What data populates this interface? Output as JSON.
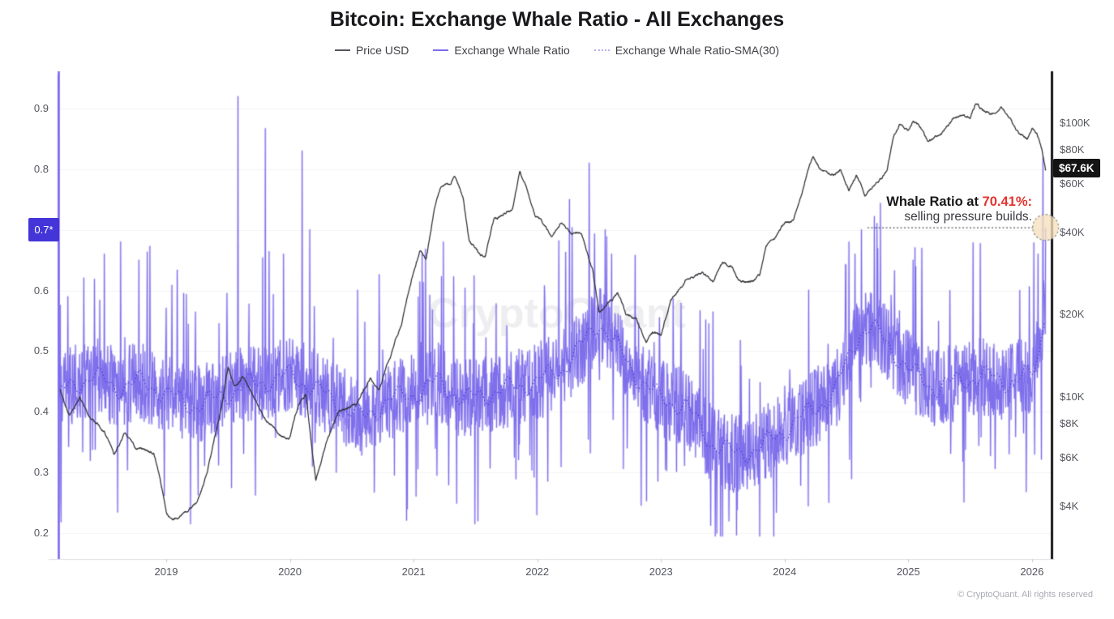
{
  "page": {
    "title": "Bitcoin: Exchange Whale Ratio - All Exchanges",
    "watermark": "CryptoQuant",
    "copyright": "© CryptoQuant. All rights reserved"
  },
  "legend": {
    "items": [
      {
        "label": "Price USD",
        "color": "#55555c",
        "style": "solid"
      },
      {
        "label": "Exchange Whale Ratio",
        "color": "#7b6bea",
        "style": "solid"
      },
      {
        "label": "Exchange Whale Ratio-SMA(30)",
        "color": "#b6adf3",
        "style": "dotted"
      }
    ]
  },
  "annotation": {
    "line1_prefix": "Whale Ratio at ",
    "line1_highlight": "70.41%:",
    "line2": "selling pressure builds.",
    "highlight_color": "#e3342f",
    "marker_fill": "#f6e0bd",
    "marker_border": "#8b8b8b"
  },
  "axis_chips": {
    "left": {
      "label": "0.7*",
      "bg": "#4435d8",
      "value": 0.7
    },
    "right": {
      "label": "$67.6K",
      "bg": "#141414",
      "value_usd_k": 67.6
    }
  },
  "chart_data": {
    "type": "line",
    "title": "Bitcoin: Exchange Whale Ratio - All Exchanges",
    "x_domain_years": [
      2018.128,
      2026.11
    ],
    "x_axis": {
      "tick_years": [
        2019,
        2020,
        2021,
        2022,
        2023,
        2024,
        2025,
        2026
      ]
    },
    "left_axis": {
      "name": "Exchange Whale Ratio",
      "scale": "linear",
      "range": [
        0.157,
        0.959
      ],
      "tick_values": [
        0.9,
        0.8,
        0.6,
        0.5,
        0.4,
        0.3,
        0.2
      ],
      "tick_labels": [
        "0.9",
        "0.8",
        "0.6",
        "0.5",
        "0.4",
        "0.3",
        "0.2"
      ],
      "gridline_values": [
        0.9,
        0.8,
        0.7,
        0.6,
        0.5,
        0.4,
        0.3,
        0.2
      ]
    },
    "right_axis": {
      "name": "Price USD",
      "scale": "log",
      "tick_values_usd_k": [
        100,
        80,
        60,
        40,
        20,
        10,
        8,
        6,
        4
      ],
      "tick_labels": [
        "$100K",
        "$80K",
        "$60K",
        "$40K",
        "$20K",
        "$10K",
        "$8K",
        "$6K",
        "$4K"
      ]
    },
    "series": [
      {
        "name": "Price USD",
        "axis": "right",
        "color": "#2d2d32",
        "style": "solid",
        "anchors_year_usd_k": [
          [
            2018.13,
            10.8
          ],
          [
            2018.22,
            8.5
          ],
          [
            2018.3,
            9.7
          ],
          [
            2018.38,
            8.3
          ],
          [
            2018.5,
            7.5
          ],
          [
            2018.58,
            6.3
          ],
          [
            2018.66,
            7.4
          ],
          [
            2018.75,
            6.5
          ],
          [
            2018.85,
            6.4
          ],
          [
            2018.9,
            6.3
          ],
          [
            2018.93,
            5.6
          ],
          [
            2019.0,
            3.8
          ],
          [
            2019.05,
            3.5
          ],
          [
            2019.12,
            3.6
          ],
          [
            2019.25,
            4.0
          ],
          [
            2019.33,
            5.2
          ],
          [
            2019.42,
            8.0
          ],
          [
            2019.5,
            12.9
          ],
          [
            2019.55,
            10.8
          ],
          [
            2019.62,
            11.8
          ],
          [
            2019.7,
            10.2
          ],
          [
            2019.8,
            8.3
          ],
          [
            2019.9,
            7.4
          ],
          [
            2020.0,
            7.2
          ],
          [
            2020.07,
            9.4
          ],
          [
            2020.13,
            10.3
          ],
          [
            2020.21,
            5.0
          ],
          [
            2020.3,
            6.9
          ],
          [
            2020.4,
            9.0
          ],
          [
            2020.55,
            9.5
          ],
          [
            2020.65,
            11.8
          ],
          [
            2020.72,
            10.6
          ],
          [
            2020.8,
            13.8
          ],
          [
            2020.9,
            18.5
          ],
          [
            2021.0,
            29.0
          ],
          [
            2021.05,
            35.0
          ],
          [
            2021.1,
            32.0
          ],
          [
            2021.17,
            48.0
          ],
          [
            2021.22,
            57.0
          ],
          [
            2021.3,
            59.0
          ],
          [
            2021.33,
            63.5
          ],
          [
            2021.4,
            53.0
          ],
          [
            2021.45,
            37.0
          ],
          [
            2021.52,
            34.0
          ],
          [
            2021.58,
            32.0
          ],
          [
            2021.65,
            45.0
          ],
          [
            2021.72,
            47.0
          ],
          [
            2021.8,
            50.0
          ],
          [
            2021.86,
            67.0
          ],
          [
            2021.92,
            57.0
          ],
          [
            2021.98,
            47.0
          ],
          [
            2022.05,
            43.0
          ],
          [
            2022.12,
            38.0
          ],
          [
            2022.2,
            44.0
          ],
          [
            2022.28,
            40.0
          ],
          [
            2022.36,
            40.0
          ],
          [
            2022.45,
            29.0
          ],
          [
            2022.5,
            20.0
          ],
          [
            2022.58,
            22.0
          ],
          [
            2022.65,
            24.0
          ],
          [
            2022.72,
            20.0
          ],
          [
            2022.8,
            19.5
          ],
          [
            2022.88,
            16.0
          ],
          [
            2022.95,
            17.0
          ],
          [
            2023.0,
            16.6
          ],
          [
            2023.08,
            23.0
          ],
          [
            2023.17,
            25.0
          ],
          [
            2023.25,
            28.0
          ],
          [
            2023.33,
            29.0
          ],
          [
            2023.42,
            26.5
          ],
          [
            2023.5,
            30.5
          ],
          [
            2023.58,
            29.3
          ],
          [
            2023.65,
            26.0
          ],
          [
            2023.72,
            26.5
          ],
          [
            2023.8,
            27.5
          ],
          [
            2023.85,
            34.5
          ],
          [
            2023.92,
            37.5
          ],
          [
            2024.0,
            42.5
          ],
          [
            2024.07,
            43.0
          ],
          [
            2024.13,
            52.0
          ],
          [
            2024.2,
            68.0
          ],
          [
            2024.23,
            73.0
          ],
          [
            2024.3,
            65.0
          ],
          [
            2024.38,
            64.0
          ],
          [
            2024.45,
            67.5
          ],
          [
            2024.52,
            58.0
          ],
          [
            2024.58,
            65.0
          ],
          [
            2024.65,
            55.0
          ],
          [
            2024.7,
            59.0
          ],
          [
            2024.78,
            63.0
          ],
          [
            2024.83,
            69.0
          ],
          [
            2024.88,
            91.0
          ],
          [
            2024.93,
            98.0
          ],
          [
            2025.0,
            94.0
          ],
          [
            2025.04,
            102.0
          ],
          [
            2025.1,
            97.0
          ],
          [
            2025.16,
            84.0
          ],
          [
            2025.22,
            87.0
          ],
          [
            2025.3,
            94.0
          ],
          [
            2025.38,
            104.0
          ],
          [
            2025.45,
            108.0
          ],
          [
            2025.5,
            105.0
          ],
          [
            2025.55,
            118.0
          ],
          [
            2025.6,
            112.0
          ],
          [
            2025.68,
            110.0
          ],
          [
            2025.75,
            117.0
          ],
          [
            2025.8,
            111.0
          ],
          [
            2025.85,
            100.0
          ],
          [
            2025.9,
            92.0
          ],
          [
            2025.96,
            88.0
          ],
          [
            2026.0,
            95.0
          ],
          [
            2026.04,
            90.0
          ],
          [
            2026.08,
            80.0
          ],
          [
            2026.11,
            67.6
          ]
        ]
      },
      {
        "name": "Exchange Whale Ratio",
        "axis": "left",
        "color": "#7b6bea",
        "style": "solid",
        "noise_band": 0.13,
        "first_value": 0.955,
        "sma_anchors_year_ratio": [
          [
            2018.13,
            0.43
          ],
          [
            2018.4,
            0.46
          ],
          [
            2018.6,
            0.44
          ],
          [
            2018.8,
            0.45
          ],
          [
            2019.0,
            0.43
          ],
          [
            2019.2,
            0.41
          ],
          [
            2019.4,
            0.42
          ],
          [
            2019.6,
            0.44
          ],
          [
            2019.8,
            0.45
          ],
          [
            2020.0,
            0.46
          ],
          [
            2020.2,
            0.44
          ],
          [
            2020.4,
            0.41
          ],
          [
            2020.6,
            0.39
          ],
          [
            2020.8,
            0.42
          ],
          [
            2021.0,
            0.43
          ],
          [
            2021.2,
            0.45
          ],
          [
            2021.4,
            0.42
          ],
          [
            2021.6,
            0.43
          ],
          [
            2021.8,
            0.44
          ],
          [
            2022.0,
            0.45
          ],
          [
            2022.2,
            0.47
          ],
          [
            2022.4,
            0.52
          ],
          [
            2022.5,
            0.55
          ],
          [
            2022.6,
            0.52
          ],
          [
            2022.8,
            0.46
          ],
          [
            2023.0,
            0.42
          ],
          [
            2023.2,
            0.41
          ],
          [
            2023.4,
            0.35
          ],
          [
            2023.6,
            0.33
          ],
          [
            2023.8,
            0.34
          ],
          [
            2024.0,
            0.37
          ],
          [
            2024.2,
            0.4
          ],
          [
            2024.4,
            0.43
          ],
          [
            2024.6,
            0.53
          ],
          [
            2024.7,
            0.54
          ],
          [
            2024.8,
            0.52
          ],
          [
            2025.0,
            0.47
          ],
          [
            2025.2,
            0.44
          ],
          [
            2025.4,
            0.45
          ],
          [
            2025.6,
            0.46
          ],
          [
            2025.8,
            0.45
          ],
          [
            2026.0,
            0.46
          ],
          [
            2026.06,
            0.5
          ],
          [
            2026.11,
            0.58
          ]
        ],
        "major_spikes_year_ratio": [
          [
            2018.5,
            0.66
          ],
          [
            2018.63,
            0.68
          ],
          [
            2018.78,
            0.65
          ],
          [
            2019.58,
            0.92
          ],
          [
            2019.8,
            0.867
          ],
          [
            2019.95,
            0.66
          ],
          [
            2020.1,
            0.83
          ],
          [
            2020.16,
            0.7
          ],
          [
            2020.95,
            0.24
          ],
          [
            2021.07,
            0.66
          ],
          [
            2021.24,
            0.68
          ],
          [
            2022.26,
            0.75
          ],
          [
            2022.42,
            0.81
          ],
          [
            2022.55,
            0.7
          ],
          [
            2022.6,
            0.66
          ],
          [
            2023.45,
            0.2
          ],
          [
            2023.55,
            0.22
          ],
          [
            2024.52,
            0.68
          ],
          [
            2024.57,
            0.66
          ],
          [
            2024.62,
            0.7
          ],
          [
            2025.04,
            0.65
          ],
          [
            2025.9,
            0.6
          ],
          [
            2026.02,
            0.33
          ],
          [
            2026.05,
            0.66
          ],
          [
            2026.09,
            0.82
          ]
        ]
      },
      {
        "name": "Exchange Whale Ratio-SMA(30)",
        "axis": "left",
        "color": "#4c3fd0",
        "style": "dotted",
        "derived_from": "sma_anchors_year_ratio"
      }
    ],
    "last_point": {
      "year": 2026.11,
      "whale_ratio": 0.7041,
      "price_usd_k": 67.6
    },
    "annotations": [
      {
        "text": "Whale Ratio at 70.41%: selling pressure builds.",
        "target": {
          "year": 2026.11,
          "whale_ratio": 0.7041
        }
      }
    ],
    "legend_position": "top",
    "grid": "horizontal-only"
  }
}
